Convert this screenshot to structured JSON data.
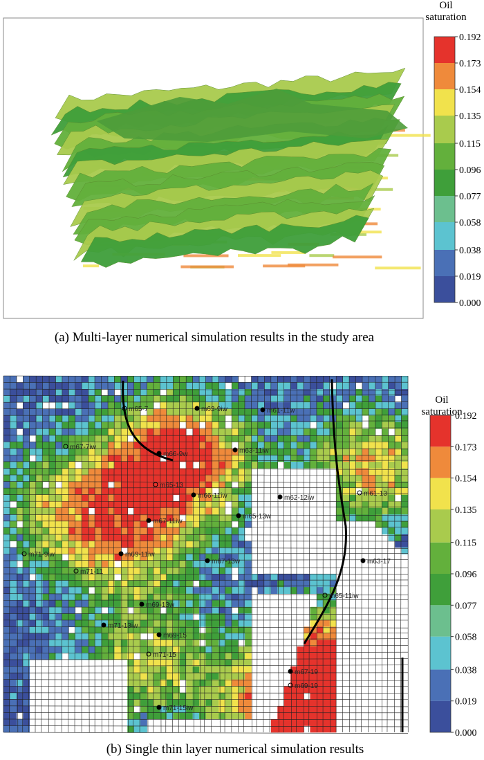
{
  "panels": [
    {
      "caption": "(a) Multi-layer numerical simulation results in the study area",
      "colorbar": {
        "title": "Oil saturation",
        "ticks": [
          {
            "value": 0,
            "label": "0.000"
          },
          0.019,
          0.038,
          0.058,
          0.077,
          0.096,
          0.115,
          0.135,
          0.154,
          0.173,
          0.192
        ],
        "colors": [
          "#3b4f9c",
          "#4a70b6",
          "#5cc3d0",
          "#6cbf8e",
          "#3f9f3a",
          "#63b03c",
          "#a9cb4d",
          "#f1e24c",
          "#ef8a3b",
          "#e5332c"
        ]
      }
    },
    {
      "caption": "(b) Single thin layer numerical simulation results",
      "colorbar": {
        "title": "Oil saturation",
        "ticks": [
          {
            "value": 0,
            "label": "0.000"
          },
          0.019,
          0.038,
          0.058,
          0.077,
          0.096,
          0.115,
          0.135,
          0.154,
          0.173,
          0.192
        ],
        "colors": [
          "#3b4f9c",
          "#4a70b6",
          "#5cc3d0",
          "#6cbf8e",
          "#3f9f3a",
          "#63b03c",
          "#a9cb4d",
          "#f1e24c",
          "#ef8a3b",
          "#e5332c"
        ]
      },
      "well_labels": [
        "m65-7",
        "m63-9iw",
        "m61-11w",
        "m67-7iw",
        "m66-9w",
        "m63-11iw",
        "m65-13",
        "m66-11iw",
        "m62-12iw",
        "m61-13",
        "m67-11iw",
        "m65-13w",
        "m71-9iw",
        "m69-11iw",
        "m67-13w",
        "m71-11",
        "m69-13w",
        "m63-17",
        "m65-11iw",
        "m71-13iw",
        "m69-15",
        "m71-15",
        "m71-15iw",
        "m67-19",
        "m69-19"
      ]
    }
  ]
}
